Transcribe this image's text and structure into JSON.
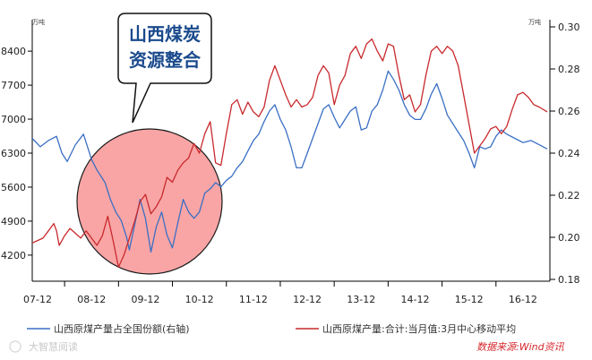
{
  "chart_data": {
    "type": "line",
    "title": "",
    "left_axis": {
      "unit": "万吨",
      "ticks": [
        4200,
        4900,
        5600,
        6300,
        7000,
        7700,
        8400
      ],
      "ylim": [
        3700,
        8900
      ]
    },
    "right_axis": {
      "unit": "万吨",
      "ticks": [
        "0.18",
        "0.20",
        "0.22",
        "0.24",
        "0.26",
        "0.28",
        "0.30"
      ],
      "ylim": [
        0.18,
        0.3
      ]
    },
    "x_ticks": [
      "07-12",
      "08-12",
      "09-12",
      "10-12",
      "11-12",
      "12-12",
      "13-12",
      "14-12",
      "15-12",
      "16-12"
    ],
    "x_range": [
      2007.4,
      2017.0
    ],
    "grid": false,
    "legend_position": "bottom",
    "series": [
      {
        "name": "山西原煤产量占全国份额(右轴)",
        "axis": "right",
        "color": "#3a6fc4",
        "points": [
          [
            2007.4,
            0.247
          ],
          [
            2007.55,
            0.243
          ],
          [
            2007.7,
            0.246
          ],
          [
            2007.85,
            0.248
          ],
          [
            2007.95,
            0.24
          ],
          [
            2008.05,
            0.236
          ],
          [
            2008.2,
            0.244
          ],
          [
            2008.35,
            0.249
          ],
          [
            2008.5,
            0.237
          ],
          [
            2008.6,
            0.232
          ],
          [
            2008.75,
            0.226
          ],
          [
            2008.85,
            0.218
          ],
          [
            2008.95,
            0.212
          ],
          [
            2009.05,
            0.208
          ],
          [
            2009.15,
            0.2
          ],
          [
            2009.2,
            0.194
          ],
          [
            2009.3,
            0.206
          ],
          [
            2009.4,
            0.218
          ],
          [
            2009.5,
            0.209
          ],
          [
            2009.6,
            0.193
          ],
          [
            2009.7,
            0.205
          ],
          [
            2009.8,
            0.212
          ],
          [
            2009.9,
            0.201
          ],
          [
            2010.0,
            0.195
          ],
          [
            2010.1,
            0.207
          ],
          [
            2010.2,
            0.218
          ],
          [
            2010.3,
            0.212
          ],
          [
            2010.4,
            0.209
          ],
          [
            2010.5,
            0.212
          ],
          [
            2010.6,
            0.221
          ],
          [
            2010.7,
            0.223
          ],
          [
            2010.8,
            0.226
          ],
          [
            2010.9,
            0.224
          ],
          [
            2011.0,
            0.227
          ],
          [
            2011.1,
            0.229
          ],
          [
            2011.2,
            0.233
          ],
          [
            2011.3,
            0.236
          ],
          [
            2011.4,
            0.241
          ],
          [
            2011.5,
            0.246
          ],
          [
            2011.6,
            0.249
          ],
          [
            2011.7,
            0.255
          ],
          [
            2011.8,
            0.26
          ],
          [
            2011.9,
            0.263
          ],
          [
            2012.0,
            0.256
          ],
          [
            2012.1,
            0.251
          ],
          [
            2012.2,
            0.243
          ],
          [
            2012.3,
            0.233
          ],
          [
            2012.4,
            0.233
          ],
          [
            2012.5,
            0.24
          ],
          [
            2012.6,
            0.247
          ],
          [
            2012.7,
            0.254
          ],
          [
            2012.8,
            0.261
          ],
          [
            2012.9,
            0.263
          ],
          [
            2013.0,
            0.257
          ],
          [
            2013.1,
            0.252
          ],
          [
            2013.2,
            0.256
          ],
          [
            2013.3,
            0.26
          ],
          [
            2013.4,
            0.262
          ],
          [
            2013.5,
            0.251
          ],
          [
            2013.6,
            0.252
          ],
          [
            2013.7,
            0.26
          ],
          [
            2013.8,
            0.263
          ],
          [
            2013.9,
            0.27
          ],
          [
            2014.0,
            0.279
          ],
          [
            2014.1,
            0.275
          ],
          [
            2014.2,
            0.27
          ],
          [
            2014.3,
            0.263
          ],
          [
            2014.4,
            0.258
          ],
          [
            2014.5,
            0.256
          ],
          [
            2014.6,
            0.256
          ],
          [
            2014.7,
            0.261
          ],
          [
            2014.8,
            0.268
          ],
          [
            2014.9,
            0.273
          ],
          [
            2015.0,
            0.266
          ],
          [
            2015.1,
            0.258
          ],
          [
            2015.2,
            0.254
          ],
          [
            2015.3,
            0.25
          ],
          [
            2015.4,
            0.246
          ],
          [
            2015.5,
            0.24
          ],
          [
            2015.6,
            0.233
          ],
          [
            2015.7,
            0.243
          ],
          [
            2015.8,
            0.242
          ],
          [
            2015.9,
            0.243
          ],
          [
            2016.0,
            0.248
          ],
          [
            2016.1,
            0.251
          ],
          [
            2016.2,
            0.249
          ],
          [
            2016.35,
            0.247
          ],
          [
            2016.5,
            0.245
          ],
          [
            2016.65,
            0.246
          ],
          [
            2016.8,
            0.244
          ],
          [
            2016.95,
            0.242
          ]
        ]
      },
      {
        "name": "山西原煤产量:合计:当月值:3月中心移动平均",
        "axis": "left",
        "color": "#c8292d",
        "points": [
          [
            2007.4,
            4450
          ],
          [
            2007.5,
            4500
          ],
          [
            2007.6,
            4550
          ],
          [
            2007.7,
            4700
          ],
          [
            2007.8,
            4850
          ],
          [
            2007.85,
            4700
          ],
          [
            2007.9,
            4400
          ],
          [
            2008.0,
            4600
          ],
          [
            2008.1,
            4750
          ],
          [
            2008.2,
            4650
          ],
          [
            2008.3,
            4550
          ],
          [
            2008.4,
            4700
          ],
          [
            2008.5,
            4550
          ],
          [
            2008.6,
            4400
          ],
          [
            2008.7,
            4600
          ],
          [
            2008.8,
            5000
          ],
          [
            2008.9,
            4500
          ],
          [
            2009.0,
            3950
          ],
          [
            2009.1,
            4200
          ],
          [
            2009.2,
            4550
          ],
          [
            2009.3,
            4900
          ],
          [
            2009.4,
            5300
          ],
          [
            2009.5,
            5450
          ],
          [
            2009.6,
            5050
          ],
          [
            2009.7,
            5200
          ],
          [
            2009.8,
            5400
          ],
          [
            2009.9,
            5800
          ],
          [
            2010.0,
            5700
          ],
          [
            2010.1,
            5950
          ],
          [
            2010.2,
            6100
          ],
          [
            2010.3,
            6200
          ],
          [
            2010.4,
            6500
          ],
          [
            2010.5,
            6300
          ],
          [
            2010.6,
            6700
          ],
          [
            2010.7,
            6950
          ],
          [
            2010.8,
            6100
          ],
          [
            2010.9,
            6050
          ],
          [
            2011.0,
            6700
          ],
          [
            2011.1,
            7300
          ],
          [
            2011.2,
            7400
          ],
          [
            2011.3,
            7100
          ],
          [
            2011.4,
            7350
          ],
          [
            2011.5,
            7150
          ],
          [
            2011.6,
            7050
          ],
          [
            2011.7,
            7250
          ],
          [
            2011.8,
            7800
          ],
          [
            2011.9,
            8100
          ],
          [
            2012.0,
            7800
          ],
          [
            2012.1,
            7500
          ],
          [
            2012.2,
            7250
          ],
          [
            2012.3,
            7400
          ],
          [
            2012.4,
            7250
          ],
          [
            2012.5,
            7300
          ],
          [
            2012.6,
            7450
          ],
          [
            2012.7,
            7900
          ],
          [
            2012.8,
            8100
          ],
          [
            2012.9,
            7950
          ],
          [
            2013.0,
            7300
          ],
          [
            2013.1,
            7700
          ],
          [
            2013.2,
            7900
          ],
          [
            2013.3,
            8350
          ],
          [
            2013.4,
            8500
          ],
          [
            2013.5,
            8250
          ],
          [
            2013.6,
            8550
          ],
          [
            2013.7,
            8650
          ],
          [
            2013.8,
            8400
          ],
          [
            2013.9,
            8200
          ],
          [
            2014.0,
            8550
          ],
          [
            2014.1,
            8500
          ],
          [
            2014.2,
            7900
          ],
          [
            2014.3,
            7400
          ],
          [
            2014.4,
            7500
          ],
          [
            2014.5,
            7150
          ],
          [
            2014.6,
            7300
          ],
          [
            2014.7,
            7900
          ],
          [
            2014.8,
            8400
          ],
          [
            2014.9,
            8500
          ],
          [
            2015.0,
            8350
          ],
          [
            2015.1,
            8500
          ],
          [
            2015.2,
            8400
          ],
          [
            2015.3,
            8100
          ],
          [
            2015.4,
            7500
          ],
          [
            2015.5,
            6900
          ],
          [
            2015.6,
            6300
          ],
          [
            2015.7,
            6450
          ],
          [
            2015.8,
            6600
          ],
          [
            2015.9,
            6800
          ],
          [
            2016.0,
            6850
          ],
          [
            2016.1,
            6700
          ],
          [
            2016.2,
            6850
          ],
          [
            2016.3,
            7200
          ],
          [
            2016.4,
            7500
          ],
          [
            2016.5,
            7550
          ],
          [
            2016.6,
            7450
          ],
          [
            2016.7,
            7300
          ],
          [
            2016.8,
            7250
          ],
          [
            2016.95,
            7150
          ]
        ]
      }
    ],
    "annotations": {
      "callout": [
        "山西煤炭",
        "资源整合"
      ],
      "highlight_color": "#f8a4a4"
    }
  },
  "footer": {
    "watermark": "大智慧阅读",
    "source": "数据来源:Wind资讯"
  }
}
